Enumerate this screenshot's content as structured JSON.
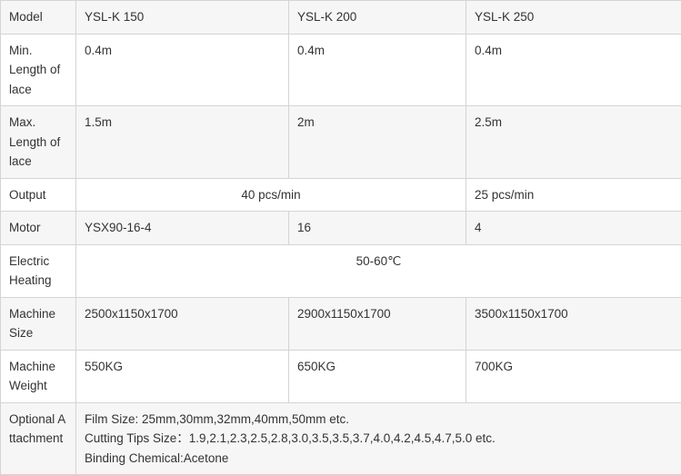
{
  "table": {
    "rows": [
      {
        "label": "Model",
        "cells": [
          "YSL-K 150",
          "YSL-K 200",
          "YSL-K 250"
        ]
      },
      {
        "label": "Min. Length of lace",
        "cells": [
          "0.4m",
          "0.4m",
          "0.4m"
        ]
      },
      {
        "label": "Max. Length of lace",
        "cells": [
          "1.5m",
          "2m",
          "2.5m"
        ]
      },
      {
        "label": "Output",
        "merged": "40 pcs/min",
        "last": "25 pcs/min"
      },
      {
        "label": "Motor",
        "cells": [
          "YSX90-16-4",
          "16",
          "4"
        ]
      },
      {
        "label": "Electric Heating",
        "all": "50-60℃"
      },
      {
        "label": "Machine Size",
        "cells": [
          "2500x1150x1700",
          "2900x1150x1700",
          "3500x1150x1700"
        ]
      },
      {
        "label": "Machine Weight",
        "cells": [
          "550KG",
          "650KG",
          "700KG"
        ]
      },
      {
        "label": "Optional Attachment",
        "lines": [
          "Film Size: 25mm,30mm,32mm,40mm,50mm etc.",
          "Cutting Tips Size：1.9,2.1,2.3,2.5,2.8,3.0,3.5,3.5,3.7,4.0,4.2,4.5,4.7,5.0 etc.",
          "Binding Chemical:Acetone"
        ]
      }
    ]
  }
}
